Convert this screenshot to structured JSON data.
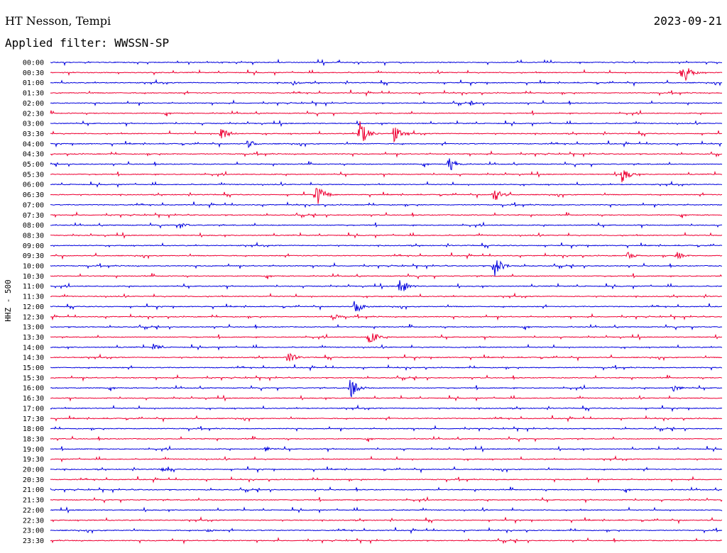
{
  "header": {
    "station": "HT Nesson, Tempi",
    "date": "2023-09-21",
    "filter_text": "Applied filter: WWSSN-SP"
  },
  "colors": {
    "odd_trace": "#0000dd",
    "even_trace": "#ee0033",
    "background": "#ffffff"
  },
  "chart_data": {
    "type": "line",
    "ylabel": "HHZ - 500",
    "row_labels": [
      "00:00",
      "00:30",
      "01:00",
      "01:30",
      "02:00",
      "02:30",
      "03:00",
      "03:30",
      "04:00",
      "04:30",
      "05:00",
      "05:30",
      "06:00",
      "06:30",
      "07:00",
      "07:30",
      "08:00",
      "08:30",
      "09:00",
      "09:30",
      "10:00",
      "10:30",
      "11:00",
      "11:30",
      "12:00",
      "12:30",
      "13:00",
      "13:30",
      "14:00",
      "14:30",
      "15:00",
      "15:30",
      "16:00",
      "16:30",
      "17:00",
      "17:30",
      "18:00",
      "18:30",
      "19:00",
      "19:30",
      "20:00",
      "20:30",
      "21:00",
      "21:30",
      "22:00",
      "22:30",
      "23:00",
      "23:30"
    ],
    "trace_colors": [
      "blue",
      "red"
    ],
    "events": [
      {
        "row": 1,
        "minute": 28.2,
        "amplitude": 20
      },
      {
        "row": 2,
        "minute": 10.8,
        "amplitude": 4
      },
      {
        "row": 4,
        "minute": 18.8,
        "amplitude": 3
      },
      {
        "row": 7,
        "minute": 7.6,
        "amplitude": 12
      },
      {
        "row": 7,
        "minute": 13.8,
        "amplitude": 22
      },
      {
        "row": 7,
        "minute": 15.3,
        "amplitude": 14
      },
      {
        "row": 8,
        "minute": 8.8,
        "amplitude": 6
      },
      {
        "row": 10,
        "minute": 17.8,
        "amplitude": 12
      },
      {
        "row": 11,
        "minute": 25.5,
        "amplitude": 14
      },
      {
        "row": 13,
        "minute": 11.9,
        "amplitude": 16
      },
      {
        "row": 13,
        "minute": 19.8,
        "amplitude": 12
      },
      {
        "row": 16,
        "minute": 5.8,
        "amplitude": 5
      },
      {
        "row": 19,
        "minute": 28.0,
        "amplitude": 6
      },
      {
        "row": 19,
        "minute": 25.8,
        "amplitude": 6
      },
      {
        "row": 20,
        "minute": 19.8,
        "amplitude": 18
      },
      {
        "row": 22,
        "minute": 15.6,
        "amplitude": 14
      },
      {
        "row": 24,
        "minute": 13.6,
        "amplitude": 12
      },
      {
        "row": 25,
        "minute": 12.6,
        "amplitude": 5
      },
      {
        "row": 27,
        "minute": 14.2,
        "amplitude": 14
      },
      {
        "row": 28,
        "minute": 4.6,
        "amplitude": 5
      },
      {
        "row": 29,
        "minute": 10.6,
        "amplitude": 10
      },
      {
        "row": 32,
        "minute": 13.4,
        "amplitude": 16
      },
      {
        "row": 32,
        "minute": 27.8,
        "amplitude": 6
      },
      {
        "row": 38,
        "minute": 9.6,
        "amplitude": 4
      },
      {
        "row": 40,
        "minute": 5.0,
        "amplitude": 4
      },
      {
        "row": 46,
        "minute": 7.0,
        "amplitude": 3
      }
    ]
  }
}
